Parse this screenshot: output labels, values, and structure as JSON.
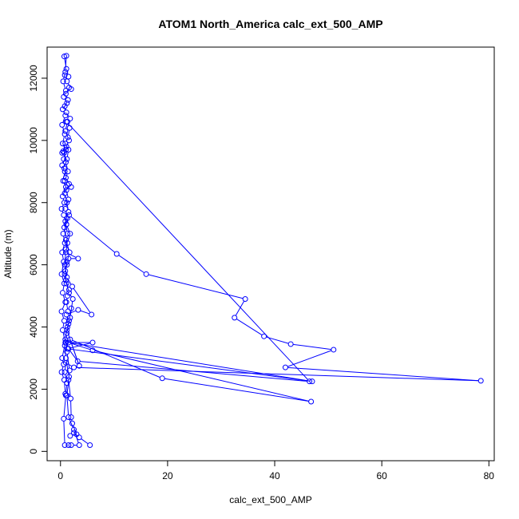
{
  "chart_data": {
    "type": "line",
    "title": "ATOM1 North_America calc_ext_500_AMP",
    "xlabel": "calc_ext_500_AMP",
    "ylabel": "Altitude (m)",
    "xlim": [
      -2.5,
      81
    ],
    "ylim": [
      -300,
      13000
    ],
    "xticks": [
      0,
      20,
      40,
      60,
      80
    ],
    "yticks": [
      0,
      2000,
      4000,
      6000,
      8000,
      10000,
      12000
    ],
    "line_color": "#0000ff",
    "series": [
      {
        "points": [
          [
            5.5,
            200
          ],
          [
            3.5,
            450
          ],
          [
            2.5,
            600
          ],
          [
            1.8,
            500
          ],
          [
            3.0,
            550
          ],
          [
            2.2,
            900
          ],
          [
            2.0,
            1100
          ],
          [
            1.9,
            1700
          ],
          [
            1.5,
            2300
          ],
          [
            1.7,
            2600
          ],
          [
            1.2,
            3200
          ],
          [
            1.0,
            3500
          ],
          [
            6.0,
            3500
          ],
          [
            1.3,
            3300
          ],
          [
            47.0,
            2250
          ],
          [
            1.5,
            3500
          ],
          [
            6.0,
            3250
          ],
          [
            46.8,
            1600
          ],
          [
            19.0,
            2350
          ],
          [
            1.8,
            3600
          ],
          [
            3.5,
            2750
          ],
          [
            1.2,
            3900
          ],
          [
            1.6,
            4200
          ],
          [
            2.0,
            4600
          ],
          [
            1.4,
            4500
          ],
          [
            1.1,
            4800
          ],
          [
            1.3,
            5000
          ],
          [
            1.6,
            5200
          ],
          [
            1.0,
            5500
          ],
          [
            0.9,
            5800
          ],
          [
            1.2,
            6000
          ],
          [
            1.5,
            6200
          ],
          [
            3.3,
            6200
          ],
          [
            1.0,
            6400
          ],
          [
            1.3,
            6700
          ],
          [
            1.8,
            7000
          ],
          [
            1.1,
            7300
          ],
          [
            1.6,
            7600
          ],
          [
            10.5,
            6350
          ],
          [
            16.0,
            5700
          ],
          [
            34.5,
            4900
          ],
          [
            32.5,
            4300
          ],
          [
            38.0,
            3700
          ],
          [
            43.0,
            3450
          ],
          [
            51.0,
            3270
          ],
          [
            42.0,
            2700
          ],
          [
            78.5,
            2270
          ],
          [
            2.5,
            2700
          ],
          [
            1.0,
            2850
          ],
          [
            0.8,
            2550
          ],
          [
            1.2,
            2200
          ],
          [
            1.0,
            1800
          ],
          [
            0.6,
            1050
          ],
          [
            0.8,
            200
          ],
          [
            1.5,
            200
          ],
          [
            2.0,
            200
          ],
          [
            3.5,
            200
          ],
          [
            2.5,
            700
          ],
          [
            1.5,
            1100
          ],
          [
            1.2,
            1800
          ],
          [
            1.6,
            2400
          ],
          [
            1.0,
            3000
          ],
          [
            0.8,
            3400
          ],
          [
            1.2,
            3800
          ],
          [
            1.5,
            4100
          ],
          [
            1.1,
            4400
          ],
          [
            3.3,
            4550
          ],
          [
            5.8,
            4400
          ],
          [
            2.2,
            5300
          ],
          [
            1.2,
            5600
          ],
          [
            0.8,
            6000
          ],
          [
            1.0,
            6500
          ],
          [
            1.3,
            7000
          ],
          [
            0.9,
            7400
          ],
          [
            1.5,
            7700
          ],
          [
            1.2,
            8000
          ],
          [
            0.8,
            8300
          ],
          [
            1.6,
            8600
          ],
          [
            2.0,
            8500
          ],
          [
            1.0,
            8800
          ],
          [
            0.7,
            9100
          ],
          [
            1.2,
            9400
          ],
          [
            1.5,
            9700
          ],
          [
            0.9,
            9900
          ],
          [
            1.4,
            10100
          ],
          [
            1.7,
            10400
          ],
          [
            1.1,
            10600
          ],
          [
            46.5,
            2250
          ],
          [
            3.2,
            2900
          ],
          [
            1.5,
            3300
          ],
          [
            0.9,
            3600
          ],
          [
            1.3,
            4000
          ],
          [
            1.8,
            4300
          ],
          [
            2.3,
            4900
          ],
          [
            1.6,
            5100
          ],
          [
            1.1,
            5400
          ],
          [
            0.8,
            5700
          ],
          [
            1.2,
            6100
          ],
          [
            1.7,
            6400
          ],
          [
            1.0,
            6800
          ],
          [
            0.7,
            7200
          ],
          [
            1.3,
            7500
          ],
          [
            0.9,
            7800
          ],
          [
            1.5,
            8100
          ],
          [
            1.1,
            8400
          ],
          [
            0.8,
            8700
          ],
          [
            1.4,
            9000
          ],
          [
            1.0,
            9300
          ],
          [
            0.7,
            9600
          ],
          [
            0.5,
            9650
          ],
          [
            0.3,
            9600
          ],
          [
            1.1,
            9800
          ],
          [
            1.6,
            10000
          ],
          [
            0.9,
            10300
          ],
          [
            1.3,
            10600
          ],
          [
            1.8,
            10700
          ],
          [
            1.1,
            10900
          ],
          [
            0.8,
            11100
          ],
          [
            1.4,
            11300
          ],
          [
            1.0,
            11500
          ],
          [
            1.6,
            11700
          ],
          [
            2.0,
            11650
          ],
          [
            1.2,
            11900
          ],
          [
            0.8,
            12100
          ],
          [
            1.5,
            12050
          ],
          [
            1.1,
            12300
          ],
          [
            0.7,
            12700
          ],
          [
            1.1,
            12720
          ],
          [
            0.9,
            12200
          ],
          [
            0.5,
            11900
          ],
          [
            1.0,
            11600
          ],
          [
            0.6,
            11400
          ],
          [
            1.2,
            11200
          ],
          [
            0.4,
            11000
          ],
          [
            0.9,
            10800
          ],
          [
            0.3,
            10500
          ],
          [
            0.8,
            10200
          ],
          [
            0.4,
            9900
          ],
          [
            1.0,
            9700
          ],
          [
            0.6,
            9400
          ],
          [
            0.3,
            9200
          ],
          [
            0.8,
            9000
          ],
          [
            0.5,
            8700
          ],
          [
            1.0,
            8500
          ],
          [
            0.4,
            8200
          ],
          [
            0.7,
            8000
          ],
          [
            0.2,
            7800
          ],
          [
            0.6,
            7600
          ],
          [
            1.1,
            7300
          ],
          [
            0.5,
            7000
          ],
          [
            0.8,
            6700
          ],
          [
            0.3,
            6400
          ],
          [
            0.6,
            6100
          ],
          [
            0.2,
            5700
          ],
          [
            0.7,
            5400
          ],
          [
            0.4,
            5100
          ],
          [
            0.9,
            4800
          ],
          [
            0.2,
            4500
          ],
          [
            0.7,
            4200
          ],
          [
            0.4,
            3900
          ],
          [
            0.9,
            3500
          ],
          [
            0.3,
            3000
          ],
          [
            0.6,
            2800
          ],
          [
            0.2,
            2550
          ],
          [
            0.7,
            2300
          ],
          [
            0.9,
            1850
          ]
        ]
      }
    ]
  }
}
